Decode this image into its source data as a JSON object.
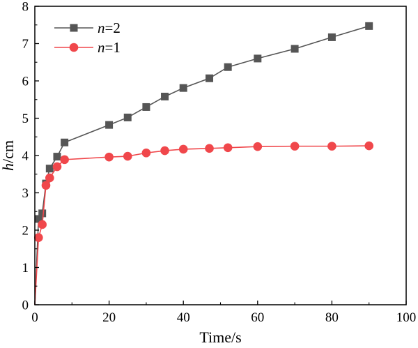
{
  "chart_data": {
    "type": "line",
    "xlabel": "Time/s",
    "ylabel": {
      "var": "h",
      "unit": "/cm"
    },
    "xlim": [
      0,
      100
    ],
    "ylim": [
      0,
      8
    ],
    "xticks": [
      0,
      20,
      40,
      60,
      80,
      100
    ],
    "yticks": [
      0,
      1,
      2,
      3,
      4,
      5,
      6,
      7,
      8
    ],
    "grid": false,
    "legend_position": "top-left",
    "series": [
      {
        "name": "n=2",
        "name_var": "n",
        "name_rest": "=2",
        "color": "#555555",
        "marker": "square",
        "x": [
          0,
          1,
          2,
          3,
          4,
          6,
          8,
          20,
          25,
          30,
          35,
          40,
          47,
          52,
          60,
          70,
          80,
          90
        ],
        "y": [
          0,
          2.3,
          2.45,
          3.25,
          3.65,
          3.97,
          4.35,
          4.82,
          5.02,
          5.3,
          5.58,
          5.81,
          6.07,
          6.37,
          6.6,
          6.86,
          7.17,
          7.47
        ]
      },
      {
        "name": "n=1",
        "name_var": "n",
        "name_rest": "=1",
        "color": "#f0474b",
        "marker": "circle",
        "x": [
          0,
          1,
          2,
          3,
          4,
          6,
          8,
          20,
          25,
          30,
          35,
          40,
          47,
          52,
          60,
          70,
          80,
          90
        ],
        "y": [
          0,
          1.8,
          2.15,
          3.2,
          3.4,
          3.7,
          3.89,
          3.96,
          3.98,
          4.07,
          4.13,
          4.17,
          4.19,
          4.21,
          4.24,
          4.25,
          4.25,
          4.26
        ]
      }
    ]
  }
}
